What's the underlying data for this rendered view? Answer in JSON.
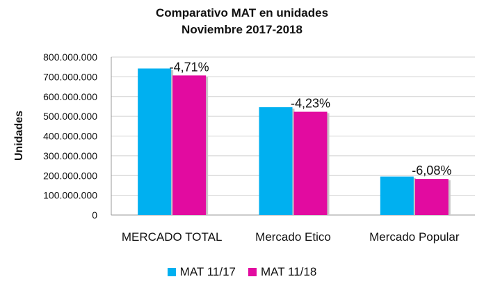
{
  "chart_data": {
    "type": "bar",
    "title": "Comparativo MAT en unidades",
    "subtitle": "Noviembre 2017-2018",
    "xlabel": "",
    "ylabel": "Unidades",
    "ylim": [
      0,
      800000000
    ],
    "yticks": [
      "0",
      "100.000.000",
      "200.000.000",
      "300.000.000",
      "400.000.000",
      "500.000.000",
      "600.000.000",
      "700.000.000",
      "800.000.000"
    ],
    "ytick_values": [
      0,
      100000000,
      200000000,
      300000000,
      400000000,
      500000000,
      600000000,
      700000000,
      800000000
    ],
    "grid": true,
    "legend_position": "bottom",
    "categories": [
      "MERCADO TOTAL",
      "Mercado Etico",
      "Mercado Popular"
    ],
    "series": [
      {
        "name": "MAT 11/17",
        "color": "#00B0F0",
        "values": [
          742000000,
          546000000,
          195000000
        ]
      },
      {
        "name": "MAT 11/18",
        "color": "#E20BA0",
        "values": [
          707000000,
          523000000,
          183000000
        ]
      }
    ],
    "annotations": [
      "-4,71%",
      "-4,23%",
      "-6,08%"
    ]
  }
}
